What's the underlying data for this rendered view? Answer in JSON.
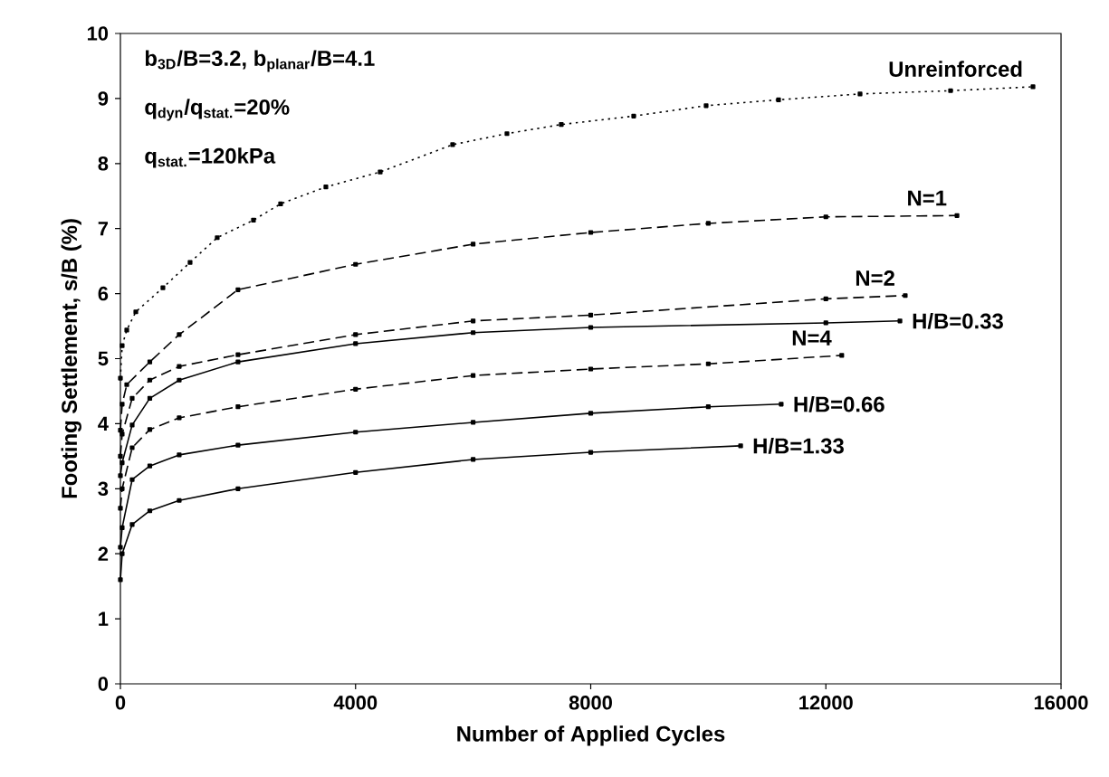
{
  "chart_data": {
    "type": "line",
    "xlabel": "Number of Applied Cycles",
    "ylabel": "Footing Settlement, s/B (%)",
    "xlim": [
      0,
      16000
    ],
    "ylim": [
      0,
      10
    ],
    "xticks": [
      0,
      4000,
      8000,
      12000,
      16000
    ],
    "yticks": [
      0,
      1,
      2,
      3,
      4,
      5,
      6,
      7,
      8,
      9,
      10
    ],
    "marker": "square",
    "annotations": [
      "b$_{3D}$/B=3.2, b$_{planar}$/B=4.1",
      "q$_{dyn}$/q$_{stat.}$=20%",
      "q$_{stat.}$=120kPa"
    ],
    "series": [
      {
        "name": "Unreinforced",
        "color": "#000000",
        "line_style": "dotted",
        "x": [
          0,
          30,
          108,
          262,
          723,
          1185,
          1647,
          2263,
          2725,
          3495,
          4419,
          5651,
          6575,
          7499,
          8731,
          9963,
          11195,
          12581,
          14121,
          15523
        ],
        "values": [
          4.7,
          5.2,
          5.44,
          5.72,
          6.09,
          6.48,
          6.86,
          7.13,
          7.38,
          7.64,
          7.87,
          8.29,
          8.46,
          8.6,
          8.73,
          8.89,
          8.98,
          9.07,
          9.12,
          9.18
        ]
      },
      {
        "name": "N=1",
        "color": "#000000",
        "line_style": "dashed",
        "x": [
          0,
          30,
          108,
          500,
          1000,
          2000,
          4000,
          6000,
          8000,
          10000,
          12000,
          14230
        ],
        "values": [
          3.9,
          4.3,
          4.6,
          4.95,
          5.37,
          6.06,
          6.45,
          6.76,
          6.94,
          7.08,
          7.18,
          7.2
        ]
      },
      {
        "name": "N=2",
        "color": "#000000",
        "line_style": "dashed",
        "x": [
          0,
          30,
          200,
          500,
          1000,
          2000,
          4000,
          6000,
          8000,
          12000,
          13350
        ],
        "values": [
          3.5,
          3.84,
          4.39,
          4.67,
          4.88,
          5.06,
          5.37,
          5.58,
          5.67,
          5.92,
          5.97
        ]
      },
      {
        "name": "H/B=0.33",
        "color": "#000000",
        "line_style": "solid",
        "x": [
          0,
          30,
          200,
          500,
          1000,
          2000,
          4000,
          6000,
          8000,
          12000,
          13260
        ],
        "values": [
          3.2,
          3.4,
          3.98,
          4.39,
          4.67,
          4.95,
          5.23,
          5.4,
          5.48,
          5.55,
          5.58
        ]
      },
      {
        "name": "N=4",
        "color": "#000000",
        "line_style": "dashed",
        "x": [
          0,
          30,
          200,
          500,
          1000,
          2000,
          4000,
          6000,
          8000,
          10000,
          12270
        ],
        "values": [
          2.7,
          3.0,
          3.63,
          3.91,
          4.09,
          4.26,
          4.53,
          4.74,
          4.84,
          4.92,
          5.05
        ]
      },
      {
        "name": "H/B=0.66",
        "color": "#000000",
        "line_style": "solid",
        "x": [
          0,
          30,
          200,
          500,
          1000,
          2000,
          4000,
          6000,
          8000,
          10000,
          11240
        ],
        "values": [
          2.1,
          2.4,
          3.14,
          3.35,
          3.52,
          3.67,
          3.87,
          4.02,
          4.16,
          4.26,
          4.3
        ]
      },
      {
        "name": "H/B=1.33",
        "color": "#000000",
        "line_style": "solid",
        "x": [
          0,
          30,
          200,
          500,
          1000,
          2000,
          4000,
          6000,
          8000,
          10550
        ],
        "values": [
          1.6,
          2.0,
          2.45,
          2.66,
          2.82,
          3.0,
          3.25,
          3.45,
          3.56,
          3.66
        ]
      }
    ]
  }
}
